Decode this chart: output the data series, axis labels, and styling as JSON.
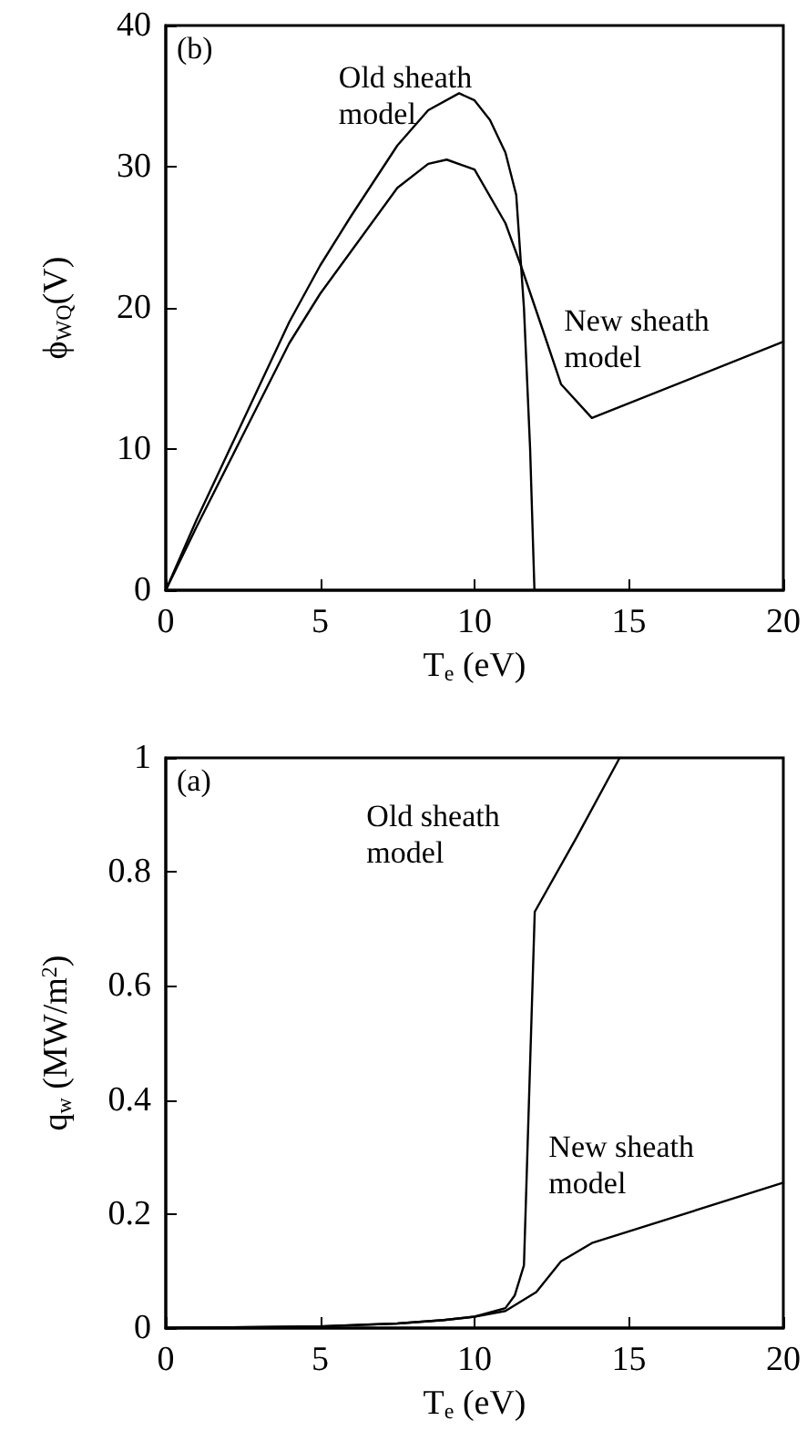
{
  "chart_data": [
    {
      "type": "line",
      "xlabel": "T$_{e}$ (eV)",
      "ylabel": "ϕ$_{WQ}$(V)",
      "xlim": [
        0,
        20
      ],
      "xticks": [
        0,
        5,
        10,
        15,
        20
      ],
      "ylim": [
        0,
        40
      ],
      "yticks": [
        0,
        10,
        20,
        30,
        40
      ],
      "grid": false,
      "marker": "none",
      "line_style": "solid",
      "annotations": [
        "(b)",
        "Old sheath model",
        "New sheath model"
      ],
      "series": [
        {
          "color": "#000000",
          "x": [
            0,
            1,
            2.5,
            4,
            5,
            6,
            7.5,
            8.5,
            9.5,
            10,
            10.5,
            11,
            11.35,
            11.6,
            11.8,
            11.94
          ],
          "values": [
            0,
            5,
            12,
            19,
            23,
            26.5,
            31.5,
            34,
            35.2,
            34.7,
            33.3,
            31,
            28,
            20,
            10,
            0
          ]
        },
        {
          "color": "#000000",
          "x": [
            0,
            1,
            2.5,
            4,
            5,
            6,
            7.5,
            8.5,
            9.1,
            10,
            11,
            11.5,
            12.2,
            12.8,
            13.8,
            20
          ],
          "values": [
            0,
            4.5,
            11,
            17.5,
            21,
            24,
            28.5,
            30.2,
            30.5,
            29.8,
            26,
            23,
            18.5,
            14.6,
            12.2,
            17.6
          ]
        }
      ]
    },
    {
      "type": "line",
      "xlabel": "T$_{e}$ (eV)",
      "ylabel": "q$_{w}$ (MW/m$^{2}$)",
      "xlim": [
        0,
        20
      ],
      "xticks": [
        0,
        5,
        10,
        15,
        20
      ],
      "ylim": [
        0,
        1
      ],
      "yticks": [
        0,
        0.2,
        0.4,
        0.6,
        0.8,
        1
      ],
      "grid": false,
      "marker": "none",
      "line_style": "solid",
      "annotations": [
        "(a)",
        "Old sheath model",
        "New sheath model"
      ],
      "series": [
        {
          "color": "#000000",
          "x": [
            0,
            5,
            7.5,
            9,
            10,
            11,
            11.3,
            11.6,
            11.95,
            13.3,
            14.7
          ],
          "values": [
            0,
            0.003,
            0.008,
            0.014,
            0.02,
            0.035,
            0.057,
            0.11,
            0.73,
            0.86,
            1
          ]
        },
        {
          "color": "#000000",
          "x": [
            0,
            5,
            7.5,
            9,
            10,
            11,
            12,
            12.8,
            13.8,
            20
          ],
          "values": [
            0,
            0.003,
            0.008,
            0.014,
            0.02,
            0.03,
            0.063,
            0.117,
            0.149,
            0.255
          ]
        }
      ]
    }
  ]
}
